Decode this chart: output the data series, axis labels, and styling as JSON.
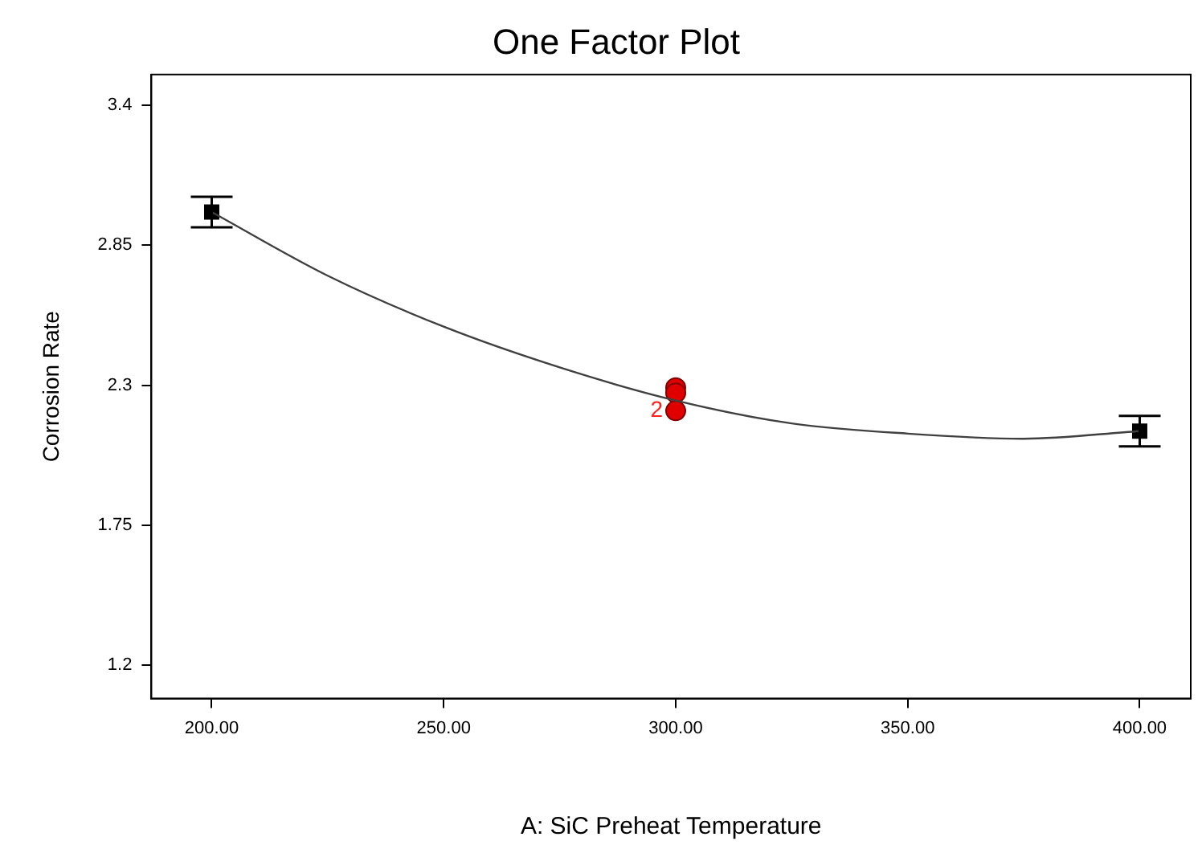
{
  "chart_data": {
    "type": "scatter",
    "title": "One Factor Plot",
    "xlabel": "A: SiC Preheat Temperature",
    "ylabel": "Corrosion Rate",
    "xlim": [
      187,
      411
    ],
    "ylim": [
      1.07,
      3.52
    ],
    "xticks": [
      {
        "value": 200,
        "label": "200.00"
      },
      {
        "value": 250,
        "label": "250.00"
      },
      {
        "value": 300,
        "label": "300.00"
      },
      {
        "value": 350,
        "label": "350.00"
      },
      {
        "value": 400,
        "label": "400.00"
      }
    ],
    "yticks": [
      1.2,
      1.75,
      2.3,
      2.85,
      3.4
    ],
    "grid": false,
    "legend": false,
    "series": [
      {
        "type": "line",
        "color": "#404040",
        "marker": "none",
        "line_style": "solid",
        "x": [
          200,
          225,
          250,
          275,
          300,
          325,
          350,
          375,
          400
        ],
        "values": [
          2.98,
          2.73,
          2.53,
          2.37,
          2.24,
          2.15,
          2.11,
          2.09,
          2.12
        ]
      },
      {
        "type": "scatter",
        "color": "#000000",
        "marker": "square",
        "x": [
          200,
          400
        ],
        "values": [
          2.98,
          2.12
        ],
        "errors": [
          0.06,
          0.06
        ]
      },
      {
        "type": "scatter",
        "color": "#e00000",
        "marker": "circle",
        "x": [
          300,
          300,
          300
        ],
        "values": [
          2.29,
          2.27,
          2.2
        ]
      }
    ],
    "annotations": [
      {
        "text": "2",
        "x": 300,
        "y": 2.2
      }
    ]
  }
}
